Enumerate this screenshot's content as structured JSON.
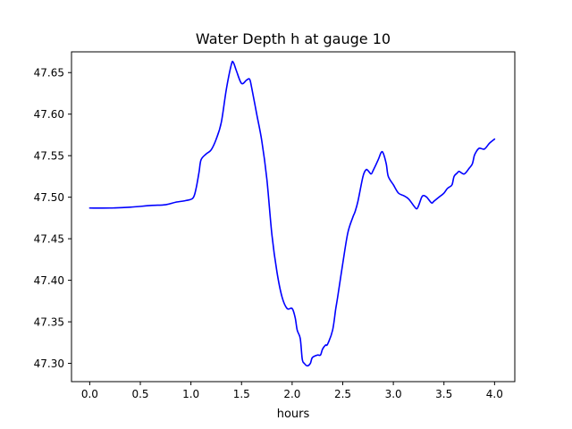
{
  "chart_data": {
    "type": "line",
    "title": "Water Depth h at gauge 10",
    "xlabel": "hours",
    "ylabel": "",
    "xlim": [
      -0.18,
      4.2
    ],
    "ylim": [
      47.278,
      47.675
    ],
    "xticks": [
      0.0,
      0.5,
      1.0,
      1.5,
      2.0,
      2.5,
      3.0,
      3.5,
      4.0
    ],
    "xtick_labels": [
      "0.0",
      "0.5",
      "1.0",
      "1.5",
      "2.0",
      "2.5",
      "3.0",
      "3.5",
      "4.0"
    ],
    "yticks": [
      47.3,
      47.35,
      47.4,
      47.45,
      47.5,
      47.55,
      47.6,
      47.65
    ],
    "ytick_labels": [
      "47.30",
      "47.35",
      "47.40",
      "47.45",
      "47.50",
      "47.55",
      "47.60",
      "47.65"
    ],
    "grid": false,
    "legend": "none",
    "series": [
      {
        "color": "#0000ff",
        "x": [
          0.0,
          0.2,
          0.4,
          0.6,
          0.75,
          0.85,
          0.95,
          1.02,
          1.05,
          1.08,
          1.1,
          1.15,
          1.2,
          1.25,
          1.3,
          1.35,
          1.4,
          1.42,
          1.45,
          1.5,
          1.55,
          1.58,
          1.6,
          1.65,
          1.7,
          1.75,
          1.8,
          1.85,
          1.9,
          1.95,
          2.0,
          2.03,
          2.05,
          2.08,
          2.1,
          2.12,
          2.15,
          2.18,
          2.2,
          2.25,
          2.28,
          2.3,
          2.33,
          2.35,
          2.4,
          2.43,
          2.45,
          2.5,
          2.55,
          2.6,
          2.62,
          2.65,
          2.7,
          2.73,
          2.75,
          2.78,
          2.8,
          2.85,
          2.88,
          2.9,
          2.93,
          2.95,
          3.0,
          3.05,
          3.1,
          3.15,
          3.2,
          3.23,
          3.25,
          3.28,
          3.3,
          3.33,
          3.35,
          3.38,
          3.4,
          3.45,
          3.5,
          3.53,
          3.55,
          3.58,
          3.6,
          3.63,
          3.65,
          3.7,
          3.75,
          3.78,
          3.8,
          3.82,
          3.85,
          3.9,
          3.95,
          4.0
        ],
        "y": [
          47.487,
          47.487,
          47.488,
          47.49,
          47.491,
          47.494,
          47.496,
          47.499,
          47.51,
          47.53,
          47.545,
          47.552,
          47.557,
          47.57,
          47.59,
          47.63,
          47.66,
          47.662,
          47.652,
          47.637,
          47.641,
          47.642,
          47.632,
          47.6,
          47.568,
          47.522,
          47.455,
          47.41,
          47.38,
          47.366,
          47.366,
          47.355,
          47.34,
          47.33,
          47.305,
          47.3,
          47.297,
          47.3,
          47.307,
          47.31,
          47.31,
          47.317,
          47.322,
          47.323,
          47.34,
          47.365,
          47.38,
          47.42,
          47.457,
          47.476,
          47.482,
          47.495,
          47.525,
          47.533,
          47.532,
          47.528,
          47.532,
          47.545,
          47.554,
          47.553,
          47.54,
          47.525,
          47.515,
          47.505,
          47.502,
          47.498,
          47.49,
          47.486,
          47.49,
          47.5,
          47.502,
          47.5,
          47.497,
          47.493,
          47.495,
          47.5,
          47.505,
          47.51,
          47.512,
          47.515,
          47.525,
          47.529,
          47.531,
          47.528,
          47.535,
          47.54,
          47.55,
          47.555,
          47.559,
          47.558,
          47.565,
          47.57
        ]
      }
    ]
  }
}
